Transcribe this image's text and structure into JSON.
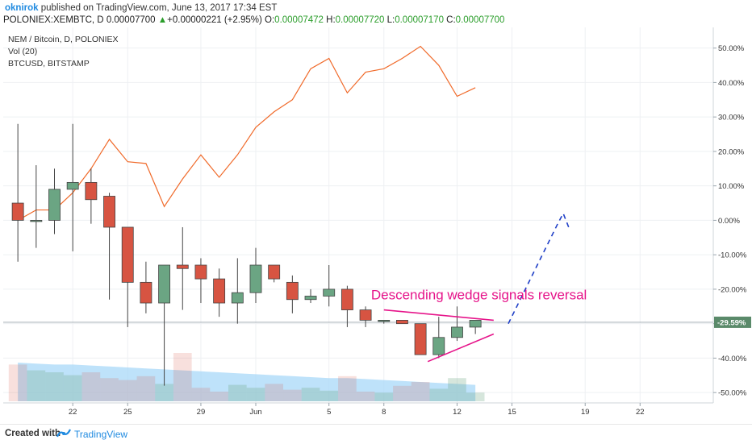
{
  "header": {
    "user": "oknirok",
    "published": "published on TradingView.com, June 13, 2017 17:34 EST",
    "symbol": "POLONIEX:XEMBTC, D",
    "last": "0.00007700",
    "up_arrow": "▲",
    "change": "+0.00000221 (+2.95%)",
    "o_label": "O:",
    "o_value": "0.00007472",
    "h_label": "H:",
    "h_value": "0.00007720",
    "l_label": "L:",
    "l_value": "0.00007170",
    "c_label": "C:",
    "c_value": "0.00007700"
  },
  "legend": [
    "NEM / Bitcoin, D, POLONIEX",
    "Vol (20)",
    "BTCUSD, BITSTAMP"
  ],
  "annotation": "Descending wedge signals reversal",
  "footer": {
    "created": "Created with",
    "brand": "TradingView"
  },
  "colors": {
    "up": "#6ba583",
    "down": "#d75442",
    "btc_line": "#f06a2a",
    "volume_ma": "#a8d8f8",
    "wedge": "#e6148a",
    "projection": "#1f3fc7",
    "price_tag": "#5a8a6a"
  },
  "chart_data": {
    "type": "candlestick",
    "y_axis": {
      "ticks": [
        "50.00%",
        "40.00%",
        "30.00%",
        "20.00%",
        "10.00%",
        "0.00%",
        "-10.00%",
        "-20.00%",
        "-30.00%",
        "-40.00%",
        "-50.00%"
      ],
      "values": [
        50,
        40,
        30,
        20,
        10,
        0,
        -10,
        -20,
        -30,
        -40,
        -50
      ],
      "range": [
        -53,
        56
      ],
      "current_label": "-29.59%",
      "current_value": -29.59
    },
    "x_axis": {
      "ticks": [
        "22",
        "25",
        "29",
        "Jun",
        "5",
        "8",
        "12",
        "15",
        "19",
        "22"
      ],
      "tick_days": [
        3,
        6,
        10,
        13,
        17,
        20,
        24,
        27,
        31,
        34
      ],
      "day_range": [
        -0.8,
        38
      ]
    },
    "candles": [
      {
        "o": 5,
        "h": 28,
        "l": -12,
        "c": 0
      },
      {
        "o": 0,
        "h": 16,
        "l": -8,
        "c": 0
      },
      {
        "o": 0,
        "h": 15,
        "l": -4,
        "c": 9
      },
      {
        "o": 9,
        "h": 28,
        "l": -9,
        "c": 11
      },
      {
        "o": 11,
        "h": 15,
        "l": -1,
        "c": 6
      },
      {
        "o": 7,
        "h": 8,
        "l": -23,
        "c": -2
      },
      {
        "o": -2,
        "h": -2,
        "l": -31,
        "c": -18
      },
      {
        "o": -18,
        "h": -12,
        "l": -27,
        "c": -24
      },
      {
        "o": -24,
        "h": -14,
        "l": -48,
        "c": -13
      },
      {
        "o": -13,
        "h": -2,
        "l": -26,
        "c": -14
      },
      {
        "o": -13,
        "h": -11,
        "l": -24,
        "c": -17
      },
      {
        "o": -17,
        "h": -14,
        "l": -28,
        "c": -24
      },
      {
        "o": -24,
        "h": -11,
        "l": -30,
        "c": -21
      },
      {
        "o": -21,
        "h": -8,
        "l": -24,
        "c": -13
      },
      {
        "o": -13,
        "h": -13,
        "l": -18,
        "c": -17
      },
      {
        "o": -18,
        "h": -16,
        "l": -27,
        "c": -23
      },
      {
        "o": -23,
        "h": -20,
        "l": -24,
        "c": -22
      },
      {
        "o": -22,
        "h": -13,
        "l": -25,
        "c": -20
      },
      {
        "o": -20,
        "h": -19,
        "l": -31,
        "c": -26
      },
      {
        "o": -26,
        "h": -25,
        "l": -31,
        "c": -29
      },
      {
        "o": -29,
        "h": -29,
        "l": -30,
        "c": -29
      },
      {
        "o": -29,
        "h": -29,
        "l": -30,
        "c": -30
      },
      {
        "o": -30,
        "h": -30,
        "l": -39,
        "c": -39
      },
      {
        "o": -39,
        "h": -28,
        "l": -40,
        "c": -34
      },
      {
        "o": -34,
        "h": -25,
        "l": -35,
        "c": -31
      },
      {
        "o": -31,
        "h": -29,
        "l": -33,
        "c": -29
      }
    ],
    "btc_line": [
      0,
      3,
      3,
      8,
      15,
      23.5,
      17,
      16.5,
      4,
      12,
      19,
      12.5,
      19,
      27,
      31.5,
      35,
      44,
      47,
      37,
      43,
      44,
      47,
      50.5,
      45,
      36,
      38.5
    ],
    "volume": [
      0.38,
      0.32,
      0.3,
      0.27,
      0.3,
      0.24,
      0.22,
      0.26,
      0.18,
      0.5,
      0.14,
      0.1,
      0.17,
      0.14,
      0.18,
      0.12,
      0.14,
      0.11,
      0.26,
      0.1,
      0.09,
      0.16,
      0.2,
      0.13,
      0.24,
      0.09
    ],
    "volume_ma": [
      0.4,
      0.39,
      0.38,
      0.38,
      0.37,
      0.36,
      0.35,
      0.34,
      0.33,
      0.32,
      0.31,
      0.3,
      0.29,
      0.28,
      0.27,
      0.26,
      0.25,
      0.24,
      0.24,
      0.23,
      0.22,
      0.21,
      0.2,
      0.19,
      0.18,
      0.17
    ]
  }
}
